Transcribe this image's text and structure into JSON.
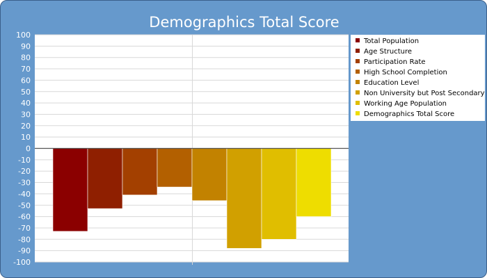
{
  "chart_data": {
    "type": "bar",
    "title": "Demographics Total Score",
    "categories": [
      "Total Population",
      "Age Structure",
      "Participation Rate",
      "High School Completion",
      "Education Level",
      "Non University but Post Secondary",
      "Working Age Population",
      "Demographics Total Score"
    ],
    "values": [
      -73,
      -53,
      -41,
      -34,
      -46,
      -88,
      -80,
      -60
    ],
    "colors": [
      "#8b0000",
      "#8f1f00",
      "#a34000",
      "#b36000",
      "#c28200",
      "#d1a000",
      "#e0be00",
      "#eedd00"
    ],
    "y_ticks": [
      "100",
      "90",
      "80",
      "70",
      "60",
      "50",
      "40",
      "30",
      "20",
      "10",
      "0",
      "-10",
      "-20",
      "-30",
      "-40",
      "-50",
      "-60",
      "-70",
      "-80",
      "-90",
      "-100"
    ],
    "ylim": [
      -100,
      100
    ],
    "grid": true,
    "legend_position": "right",
    "xlabel": "",
    "ylabel": ""
  }
}
